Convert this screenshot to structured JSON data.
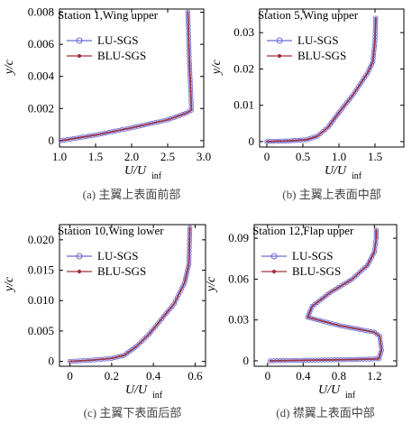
{
  "colors": {
    "lu": "#6b6bd6",
    "blu": "#a0303a"
  },
  "chart_data": [
    {
      "type": "line",
      "title": "Station 1,Wing upper",
      "caption": "(a) 主翼上表面前部",
      "xlabel_main": "U/U",
      "xlabel_sub": "inf",
      "ylabel": "y/c",
      "xlim": [
        1.0,
        3.0
      ],
      "ylim": [
        -0.0004,
        0.0082
      ],
      "xticks": [
        "1.0",
        "1.5",
        "2.0",
        "2.5",
        "3.0"
      ],
      "xtick_values": [
        1.0,
        1.5,
        2.0,
        2.5,
        3.0
      ],
      "yticks": [
        "0",
        "0.002",
        "0.004",
        "0.006",
        "0.008"
      ],
      "ytick_values": [
        0,
        0.002,
        0.004,
        0.006,
        0.008
      ],
      "legend": [
        "LU-SGS",
        "BLU-SGS"
      ],
      "legend_position": "top-left",
      "points": [
        [
          1.02,
          0.0
        ],
        [
          1.5,
          0.00035
        ],
        [
          2.0,
          0.0008
        ],
        [
          2.5,
          0.0013
        ],
        [
          2.75,
          0.0017
        ],
        [
          2.83,
          0.0019
        ],
        [
          2.82,
          0.003
        ],
        [
          2.8,
          0.005
        ],
        [
          2.79,
          0.0065
        ],
        [
          2.78,
          0.008
        ]
      ],
      "series": [
        {
          "name": "LU-SGS"
        },
        {
          "name": "BLU-SGS"
        }
      ]
    },
    {
      "type": "line",
      "title": "Station 5,Wing upper",
      "caption": "(b) 主翼上表面中部",
      "xlabel_main": "U/U",
      "xlabel_sub": "inf",
      "ylabel": "y/c",
      "xlim": [
        -0.1,
        1.9
      ],
      "ylim": [
        -0.0015,
        0.0365
      ],
      "xticks": [
        "0",
        "0.5",
        "1.0",
        "1.5"
      ],
      "xtick_values": [
        0,
        0.5,
        1.0,
        1.5
      ],
      "yticks": [
        "0",
        "0.01",
        "0.02",
        "0.03"
      ],
      "ytick_values": [
        0,
        0.01,
        0.02,
        0.03
      ],
      "legend": [
        "LU-SGS",
        "BLU-SGS"
      ],
      "legend_position": "top-left",
      "points": [
        [
          0.0,
          0.0
        ],
        [
          0.3,
          0.0002
        ],
        [
          0.55,
          0.0005
        ],
        [
          0.7,
          0.0015
        ],
        [
          0.85,
          0.004
        ],
        [
          1.0,
          0.008
        ],
        [
          1.2,
          0.013
        ],
        [
          1.4,
          0.019
        ],
        [
          1.47,
          0.022
        ],
        [
          1.5,
          0.028
        ],
        [
          1.51,
          0.034
        ]
      ],
      "series": [
        {
          "name": "LU-SGS"
        },
        {
          "name": "BLU-SGS"
        }
      ]
    },
    {
      "type": "line",
      "title": "Station 10,Wing lower",
      "caption": "(c) 主翼下表面后部",
      "xlabel_main": "U/U",
      "xlabel_sub": "inf",
      "ylabel": "y/c",
      "xlim": [
        -0.05,
        0.65
      ],
      "ylim": [
        -0.0008,
        0.0225
      ],
      "xticks": [
        "0",
        "0.2",
        "0.4",
        "0.6"
      ],
      "xtick_values": [
        0,
        0.2,
        0.4,
        0.6
      ],
      "yticks": [
        "0",
        "0.005",
        "0.010",
        "0.015",
        "0.020"
      ],
      "ytick_values": [
        0,
        0.005,
        0.01,
        0.015,
        0.02
      ],
      "legend": [
        "LU-SGS",
        "BLU-SGS"
      ],
      "legend_position": "top-left",
      "points": [
        [
          0.0,
          0.0
        ],
        [
          0.1,
          0.0002
        ],
        [
          0.2,
          0.0005
        ],
        [
          0.26,
          0.001
        ],
        [
          0.32,
          0.0025
        ],
        [
          0.38,
          0.0045
        ],
        [
          0.44,
          0.007
        ],
        [
          0.5,
          0.0095
        ],
        [
          0.55,
          0.013
        ],
        [
          0.57,
          0.016
        ],
        [
          0.575,
          0.022
        ]
      ],
      "series": [
        {
          "name": "LU-SGS"
        },
        {
          "name": "BLU-SGS"
        }
      ]
    },
    {
      "type": "line",
      "title": "Station 12,Flap upper",
      "caption": "(d) 襟翼上表面中部",
      "xlabel_main": "U/U",
      "xlabel_sub": "inf",
      "ylabel": "y/c",
      "xlim": [
        -0.15,
        1.45
      ],
      "ylim": [
        -0.004,
        0.1
      ],
      "xticks": [
        "0",
        "0.4",
        "0.8",
        "1.2"
      ],
      "xtick_values": [
        0,
        0.4,
        0.8,
        1.2
      ],
      "yticks": [
        "0",
        "0.03",
        "0.06",
        "0.09"
      ],
      "ytick_values": [
        0,
        0.03,
        0.06,
        0.09
      ],
      "legend": [
        "LU-SGS",
        "BLU-SGS"
      ],
      "legend_position": "top-left",
      "points": [
        [
          0.03,
          0.0
        ],
        [
          0.5,
          0.0005
        ],
        [
          1.0,
          0.001
        ],
        [
          1.25,
          0.0015
        ],
        [
          1.28,
          0.008
        ],
        [
          1.26,
          0.018
        ],
        [
          1.2,
          0.021
        ],
        [
          0.8,
          0.026
        ],
        [
          0.45,
          0.032
        ],
        [
          0.5,
          0.04
        ],
        [
          0.7,
          0.05
        ],
        [
          0.95,
          0.06
        ],
        [
          1.12,
          0.07
        ],
        [
          1.2,
          0.08
        ],
        [
          1.22,
          0.09
        ],
        [
          1.22,
          0.096
        ]
      ],
      "series": [
        {
          "name": "LU-SGS"
        },
        {
          "name": "BLU-SGS"
        }
      ]
    }
  ]
}
